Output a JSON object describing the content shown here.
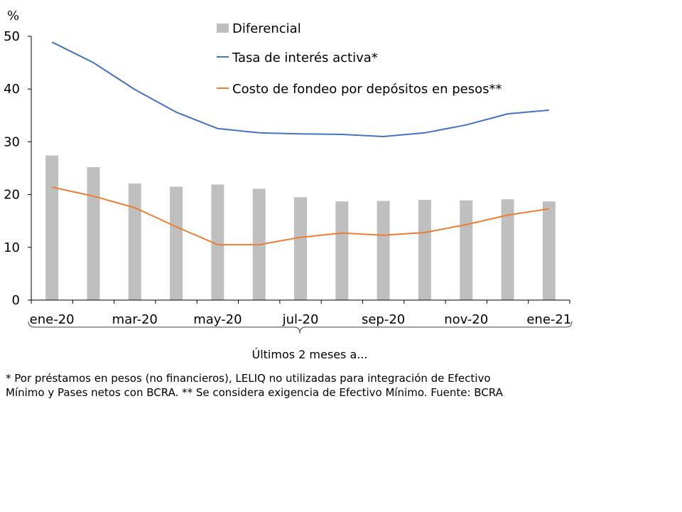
{
  "chart_data": {
    "type": "bar",
    "ylabel": "%",
    "xlabel": "",
    "ylim": [
      0,
      50
    ],
    "yticks": [
      0,
      10,
      20,
      30,
      40,
      50
    ],
    "grid": false,
    "legend": "top-center",
    "categories": [
      "ene-20",
      "",
      "mar-20",
      "",
      "may-20",
      "",
      "jul-20",
      "",
      "sep-20",
      "",
      "nov-20",
      "",
      "ene-21"
    ],
    "series": [
      {
        "name": "Diferencial",
        "type": "bar",
        "color": "#BFBFBF",
        "values": [
          27.4,
          25.2,
          22.1,
          21.5,
          21.9,
          21.1,
          19.5,
          18.7,
          18.8,
          19.0,
          18.9,
          19.1,
          18.7
        ]
      },
      {
        "name": "Tasa de interés activa*",
        "type": "line",
        "color": "#4472C4",
        "values": [
          48.9,
          45.0,
          39.9,
          35.6,
          32.5,
          31.7,
          31.5,
          31.4,
          31.0,
          31.7,
          33.2,
          35.3,
          36.0
        ]
      },
      {
        "name": "Costo de fondeo por depósitos en pesos**",
        "type": "line",
        "color": "#ED7D31",
        "values": [
          21.4,
          19.7,
          17.5,
          13.9,
          10.5,
          10.5,
          11.9,
          12.7,
          12.3,
          12.8,
          14.3,
          16.1,
          17.3
        ]
      }
    ]
  },
  "annotation": {
    "label": "Últimos 2 meses a..."
  },
  "footnote": {
    "lines": [
      "* Por préstamos en pesos (no financieros), LELIQ no utilizadas para integración de Efectivo",
      "Mínimo y Pases netos con BCRA. ** Se considera exigencia de Efectivo Mínimo. Fuente: BCRA"
    ]
  }
}
